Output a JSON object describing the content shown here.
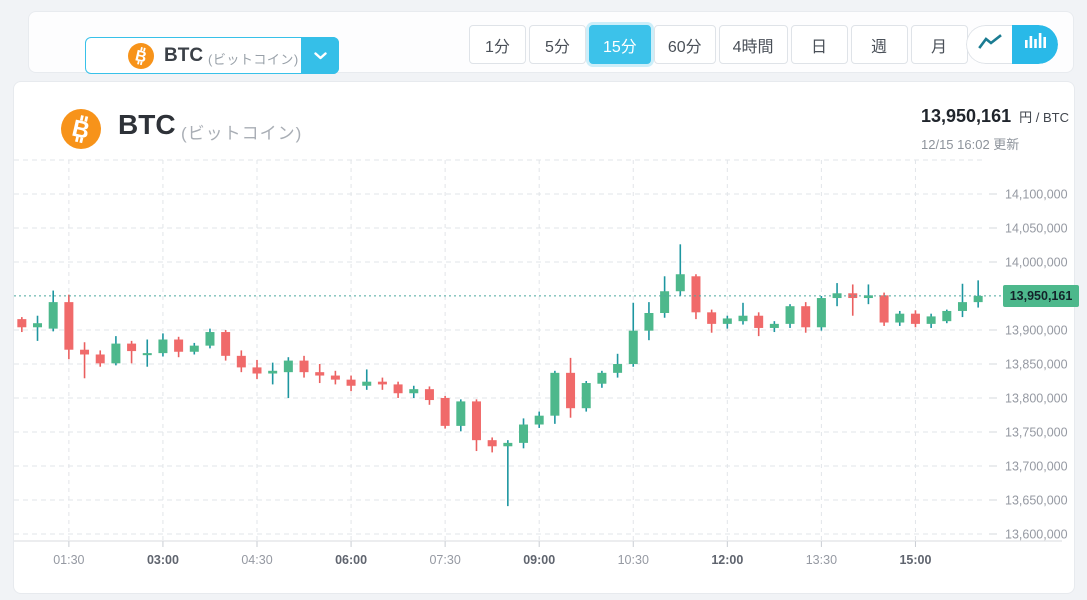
{
  "toolbar": {
    "pair_selector": {
      "symbol": "BTC",
      "name": "(ビットコイン)"
    },
    "intervals": [
      {
        "label": "1分",
        "selected": false
      },
      {
        "label": "5分",
        "selected": false
      },
      {
        "label": "15分",
        "selected": true
      },
      {
        "label": "60分",
        "selected": false
      },
      {
        "label": "4時間",
        "selected": false
      },
      {
        "label": "日",
        "selected": false
      },
      {
        "label": "週",
        "selected": false
      },
      {
        "label": "月",
        "selected": false
      }
    ],
    "chart_type_toggle": [
      {
        "name": "line-chart",
        "selected": false
      },
      {
        "name": "candlestick-chart",
        "selected": true
      }
    ]
  },
  "header": {
    "symbol": "BTC",
    "name": "(ビットコイン)",
    "price": "13,950,161",
    "unit": "円 / BTC",
    "updated": "12/15 16:02 更新"
  },
  "colors": {
    "up": "#4db88c",
    "down": "#f06a6a",
    "up_wick": "#1d96a0",
    "down_wick": "#ea5f5f",
    "accent": "#38c1e9",
    "btc_orange": "#f7931a",
    "price_line": "#4aa79d",
    "badge_bg": "#4db88c",
    "grid": "#e2e5e9",
    "axis_text": "#9599a2",
    "axis_text_bold": "#5f646e"
  },
  "chart_data": {
    "type": "candlestick",
    "interval_minutes": 15,
    "currency": "JPY",
    "ylim": [
      13590000,
      14160000
    ],
    "grid_step": 50000,
    "current_price": 13950161,
    "current_price_label": "13,950,161",
    "y_axis": {
      "tick_values": [
        14100000,
        14050000,
        14000000,
        13900000,
        13850000,
        13800000,
        13750000,
        13700000,
        13650000,
        13600000
      ],
      "tick_labels": [
        "14,100,000",
        "14,050,000",
        "14,000,000",
        "13,900,000",
        "13,850,000",
        "13,800,000",
        "13,750,000",
        "13,700,000",
        "13,650,000",
        "13,600,000"
      ],
      "unlabeled_gridlines": [
        14150000
      ]
    },
    "x_axis": {
      "ticks": [
        {
          "label": "01:30",
          "index": 3,
          "bold": false
        },
        {
          "label": "03:00",
          "index": 9,
          "bold": true
        },
        {
          "label": "04:30",
          "index": 15,
          "bold": false
        },
        {
          "label": "06:00",
          "index": 21,
          "bold": true
        },
        {
          "label": "07:30",
          "index": 27,
          "bold": false
        },
        {
          "label": "09:00",
          "index": 33,
          "bold": true
        },
        {
          "label": "10:30",
          "index": 39,
          "bold": false
        },
        {
          "label": "12:00",
          "index": 45,
          "bold": true
        },
        {
          "label": "13:30",
          "index": 51,
          "bold": false
        },
        {
          "label": "15:00",
          "index": 57,
          "bold": true
        }
      ]
    },
    "candle_format": [
      "time",
      "open",
      "high",
      "low",
      "close"
    ],
    "candles": [
      [
        "00:45",
        13916000,
        13919000,
        13897000,
        13904000
      ],
      [
        "01:00",
        13904000,
        13921000,
        13884000,
        13910000
      ],
      [
        "01:15",
        13902000,
        13958000,
        13898000,
        13941000
      ],
      [
        "01:30",
        13941000,
        13952000,
        13857000,
        13871000
      ],
      [
        "01:45",
        13871000,
        13882000,
        13829000,
        13864000
      ],
      [
        "02:00",
        13864000,
        13870000,
        13846000,
        13851000
      ],
      [
        "02:15",
        13851000,
        13891000,
        13848000,
        13880000
      ],
      [
        "02:30",
        13880000,
        13884000,
        13851000,
        13869000
      ],
      [
        "02:45",
        13863000,
        13886000,
        13846000,
        13866000
      ],
      [
        "03:00",
        13866000,
        13895000,
        13861000,
        13886000
      ],
      [
        "03:15",
        13886000,
        13890000,
        13860000,
        13868000
      ],
      [
        "03:30",
        13868000,
        13881000,
        13864000,
        13877000
      ],
      [
        "03:45",
        13877000,
        13902000,
        13873000,
        13897000
      ],
      [
        "04:00",
        13897000,
        13900000,
        13855000,
        13862000
      ],
      [
        "04:15",
        13862000,
        13870000,
        13838000,
        13845000
      ],
      [
        "04:30",
        13845000,
        13856000,
        13828000,
        13836000
      ],
      [
        "04:45",
        13836000,
        13852000,
        13820000,
        13840000
      ],
      [
        "05:00",
        13838000,
        13860000,
        13800000,
        13855000
      ],
      [
        "05:15",
        13855000,
        13862000,
        13830000,
        13838000
      ],
      [
        "05:30",
        13838000,
        13850000,
        13822000,
        13833000
      ],
      [
        "05:45",
        13833000,
        13840000,
        13820000,
        13827000
      ],
      [
        "06:00",
        13827000,
        13833000,
        13810000,
        13818000
      ],
      [
        "06:15",
        13818000,
        13842000,
        13812000,
        13824000
      ],
      [
        "06:30",
        13824000,
        13830000,
        13812000,
        13820000
      ],
      [
        "06:45",
        13820000,
        13824000,
        13800000,
        13807000
      ],
      [
        "07:00",
        13807000,
        13818000,
        13800000,
        13813000
      ],
      [
        "07:15",
        13813000,
        13817000,
        13790000,
        13797000
      ],
      [
        "07:30",
        13800000,
        13803000,
        13755000,
        13759000
      ],
      [
        "07:45",
        13759000,
        13798000,
        13751000,
        13795000
      ],
      [
        "08:00",
        13795000,
        13798000,
        13722000,
        13738000
      ],
      [
        "08:15",
        13738000,
        13742000,
        13720000,
        13729000
      ],
      [
        "08:30",
        13729000,
        13738000,
        13641000,
        13734000
      ],
      [
        "08:45",
        13734000,
        13770000,
        13726000,
        13761000
      ],
      [
        "09:00",
        13761000,
        13780000,
        13756000,
        13774000
      ],
      [
        "09:15",
        13774000,
        13840000,
        13762000,
        13837000
      ],
      [
        "09:30",
        13837000,
        13859000,
        13771000,
        13785000
      ],
      [
        "09:45",
        13785000,
        13825000,
        13780000,
        13822000
      ],
      [
        "10:00",
        13821000,
        13840000,
        13815000,
        13837000
      ],
      [
        "10:15",
        13837000,
        13865000,
        13830000,
        13850000
      ],
      [
        "10:30",
        13850000,
        13940000,
        13846000,
        13899000
      ],
      [
        "10:45",
        13899000,
        13941000,
        13885000,
        13925000
      ],
      [
        "11:00",
        13925000,
        13979000,
        13918000,
        13957000
      ],
      [
        "11:15",
        13957000,
        14026000,
        13950000,
        13982000
      ],
      [
        "11:30",
        13979000,
        13982000,
        13916000,
        13926000
      ],
      [
        "11:45",
        13926000,
        13930000,
        13896000,
        13909000
      ],
      [
        "12:00",
        13909000,
        13921000,
        13902000,
        13917000
      ],
      [
        "12:15",
        13913000,
        13940000,
        13908000,
        13921000
      ],
      [
        "12:30",
        13921000,
        13926000,
        13891000,
        13903000
      ],
      [
        "12:45",
        13903000,
        13913000,
        13897000,
        13909000
      ],
      [
        "13:00",
        13909000,
        13938000,
        13903000,
        13935000
      ],
      [
        "13:15",
        13935000,
        13941000,
        13896000,
        13904000
      ],
      [
        "13:30",
        13904000,
        13950000,
        13899000,
        13947000
      ],
      [
        "13:45",
        13947000,
        13969000,
        13935000,
        13954000
      ],
      [
        "14:00",
        13954000,
        13967000,
        13921000,
        13947000
      ],
      [
        "14:15",
        13947000,
        13967000,
        13938000,
        13951000
      ],
      [
        "14:30",
        13951000,
        13955000,
        13906000,
        13911000
      ],
      [
        "14:45",
        13911000,
        13928000,
        13906000,
        13924000
      ],
      [
        "15:00",
        13924000,
        13929000,
        13904000,
        13909000
      ],
      [
        "15:15",
        13909000,
        13924000,
        13903000,
        13920000
      ],
      [
        "15:30",
        13913000,
        13930000,
        13910000,
        13928000
      ],
      [
        "15:45",
        13928000,
        13968000,
        13919000,
        13941000
      ],
      [
        "16:00",
        13941000,
        13973000,
        13933000,
        13950161
      ]
    ]
  }
}
